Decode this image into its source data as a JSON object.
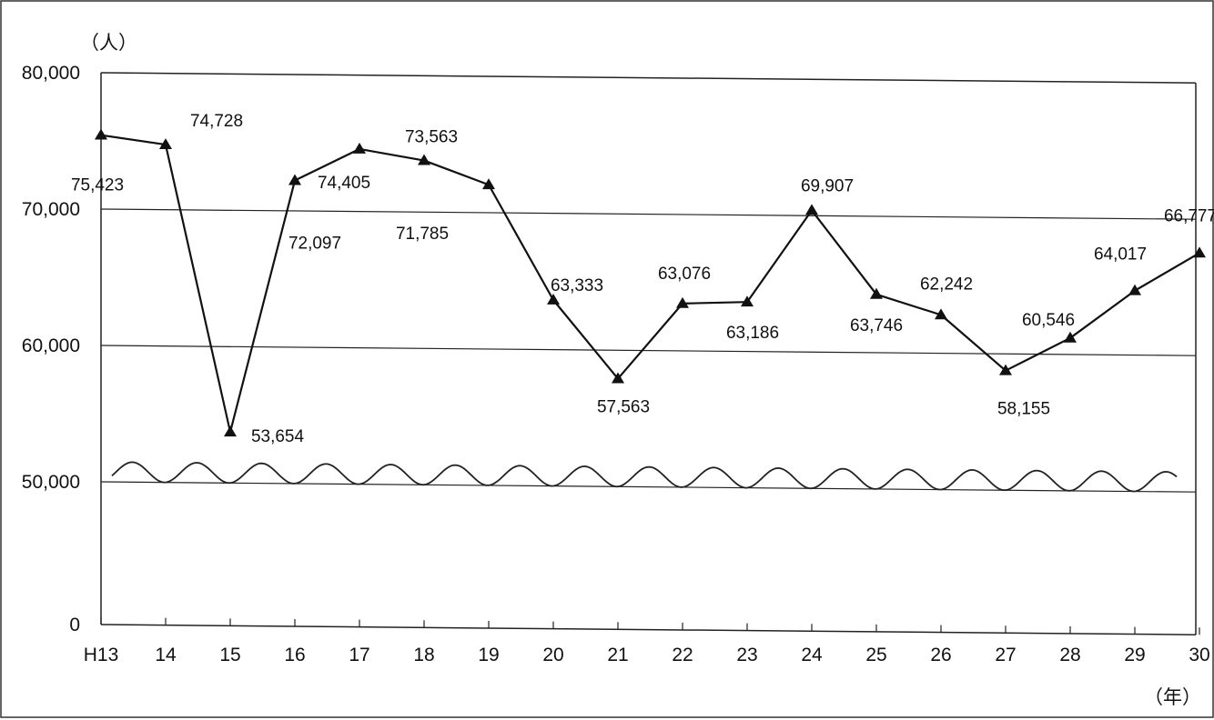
{
  "chart_data": {
    "type": "line",
    "y_unit": "（人）",
    "x_unit": "（年）",
    "categories": [
      "H13",
      "14",
      "15",
      "16",
      "17",
      "18",
      "19",
      "20",
      "21",
      "22",
      "23",
      "24",
      "25",
      "26",
      "27",
      "28",
      "29",
      "30"
    ],
    "series": [
      {
        "values": [
          75423,
          74728,
          53654,
          72097,
          74405,
          73563,
          71785,
          63333,
          57563,
          63076,
          63186,
          69907,
          63746,
          62242,
          58155,
          60546,
          64017,
          66777
        ],
        "labels": [
          "75,423",
          "74,728",
          "53,654",
          "72,097",
          "74,405",
          "73,563",
          "71,785",
          "63,333",
          "57,563",
          "63,076",
          "63,186",
          "69,907",
          "63,746",
          "62,242",
          "58,155",
          "60,546",
          "64,017",
          "66,777"
        ],
        "marker": "triangle",
        "color": "#111111"
      }
    ],
    "y_ticks": [
      {
        "value": 0,
        "label": "0"
      },
      {
        "value": 50000,
        "label": "50,000"
      },
      {
        "value": 60000,
        "label": "60,000"
      },
      {
        "value": 70000,
        "label": "70,000"
      },
      {
        "value": 80000,
        "label": "80,000"
      }
    ],
    "ylim": [
      0,
      80000
    ],
    "axis_break": true,
    "grid": true,
    "legend": "none"
  }
}
